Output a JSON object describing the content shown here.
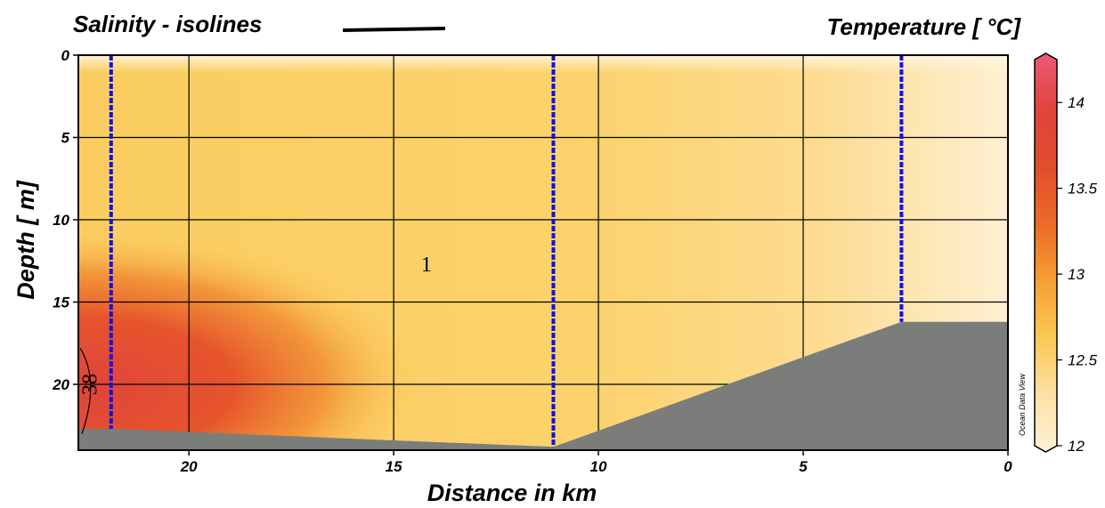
{
  "chart_data": {
    "type": "section",
    "title_left": "Salinity - isolines",
    "title_right": "Temperature  [ °C]",
    "xlabel": "Distance in km",
    "ylabel": "Depth  [ m]",
    "xlim": [
      22.7,
      0
    ],
    "ylim": [
      0,
      24
    ],
    "x_ticks": [
      20,
      15,
      10,
      5,
      0
    ],
    "y_ticks": [
      0,
      5,
      10,
      15,
      20
    ],
    "grid": true,
    "colorbar": {
      "label": "Temperature",
      "range": [
        12,
        14.25
      ],
      "ticks": [
        12,
        12.5,
        13,
        13.5,
        14
      ],
      "tick_labels": [
        "12",
        "12.5",
        "13",
        "13.5",
        "14"
      ],
      "colors": [
        "#fff2d6",
        "#fde0a6",
        "#fbc855",
        "#f5a032",
        "#ec6b2a",
        "#e04e2c",
        "#e0443c",
        "#ec5a78"
      ]
    },
    "stations": [
      {
        "distance_km": 21.9,
        "max_depth_m": 22.7
      },
      {
        "distance_km": 11.1,
        "max_depth_m": 23.8
      },
      {
        "distance_km": 2.6,
        "max_depth_m": 16.2
      }
    ],
    "bottom_profile": [
      {
        "distance_km": 22.7,
        "depth_m": 22.7
      },
      {
        "distance_km": 21.9,
        "depth_m": 22.7
      },
      {
        "distance_km": 11.1,
        "depth_m": 23.8
      },
      {
        "distance_km": 2.6,
        "depth_m": 16.2
      },
      {
        "distance_km": 0,
        "depth_m": 16.2
      }
    ],
    "isolines": [
      {
        "label": "38",
        "label_distance_km": 22.3,
        "label_depth_m": 20.0
      }
    ],
    "annotations": [
      {
        "text": "1",
        "distance_km": 14.2,
        "depth_m": 12.7
      }
    ],
    "watermark": "Ocean Data View",
    "salinity_legend_color": "#000000",
    "station_color": "#1010e0",
    "bottom_color": "#7b7d7b"
  }
}
